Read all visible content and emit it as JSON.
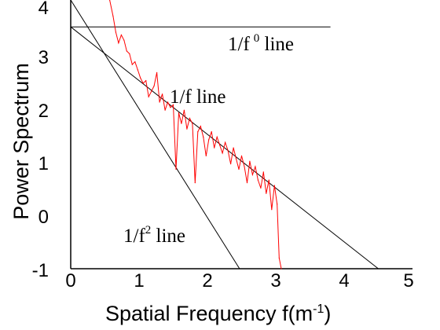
{
  "chart_data": {
    "type": "line",
    "title": "",
    "xlabel": "Spatial  Frequency f(m",
    "xlabel_sup": "-1",
    "xlabel_end": ")",
    "ylabel": "Power Spectrum",
    "xlim": [
      0,
      5
    ],
    "ylim": [
      -1,
      4
    ],
    "xticks": [
      "0",
      "1",
      "2",
      "3",
      "4",
      "5"
    ],
    "yticks": [
      "-1",
      "0",
      "1",
      "2",
      "3",
      "4"
    ],
    "series": [
      {
        "color": "#ff0000",
        "x": [
          0.57,
          0.62,
          0.66,
          0.7,
          0.74,
          0.78,
          0.82,
          0.86,
          0.9,
          0.94,
          0.98,
          1.02,
          1.06,
          1.1,
          1.14,
          1.18,
          1.22,
          1.26,
          1.3,
          1.34,
          1.38,
          1.42,
          1.46,
          1.5,
          1.54,
          1.58,
          1.62,
          1.66,
          1.7,
          1.74,
          1.78,
          1.82,
          1.86,
          1.9,
          1.94,
          1.98,
          2.02,
          2.06,
          2.1,
          2.14,
          2.18,
          2.22,
          2.26,
          2.3,
          2.34,
          2.38,
          2.42,
          2.46,
          2.5,
          2.54,
          2.58,
          2.62,
          2.66,
          2.7,
          2.74,
          2.78,
          2.82,
          2.86,
          2.9,
          2.94,
          2.98,
          3.02,
          3.05,
          3.08
        ],
        "y": [
          4.0,
          3.7,
          3.4,
          3.2,
          3.35,
          3.25,
          3.05,
          3.0,
          2.8,
          2.85,
          2.7,
          2.55,
          2.45,
          2.5,
          2.2,
          2.3,
          2.4,
          2.65,
          2.1,
          2.25,
          1.95,
          2.1,
          2.0,
          2.05,
          0.85,
          1.9,
          1.7,
          1.95,
          1.6,
          1.8,
          1.7,
          0.6,
          1.55,
          1.65,
          1.45,
          1.1,
          1.4,
          1.55,
          1.25,
          1.45,
          1.3,
          1.15,
          1.35,
          1.2,
          0.95,
          1.25,
          1.05,
          0.85,
          1.1,
          0.9,
          0.6,
          1.0,
          0.75,
          0.9,
          0.65,
          0.5,
          0.8,
          0.4,
          0.65,
          0.1,
          0.55,
          0.2,
          -0.8,
          -1.0
        ]
      }
    ],
    "reference_lines": [
      {
        "label": "1/f",
        "label_sup": "0",
        "label_end": " line",
        "x": [
          0,
          3.8
        ],
        "y": [
          3.5,
          3.5
        ]
      },
      {
        "label": "1/f line",
        "x": [
          0,
          4.5
        ],
        "y": [
          3.5,
          -1.0
        ]
      },
      {
        "label": "1/f",
        "label_sup": "2",
        "label_end": " line",
        "x": [
          0,
          2.47
        ],
        "y": [
          4.0,
          -1.0
        ]
      }
    ],
    "grid": false,
    "legend": "none"
  }
}
